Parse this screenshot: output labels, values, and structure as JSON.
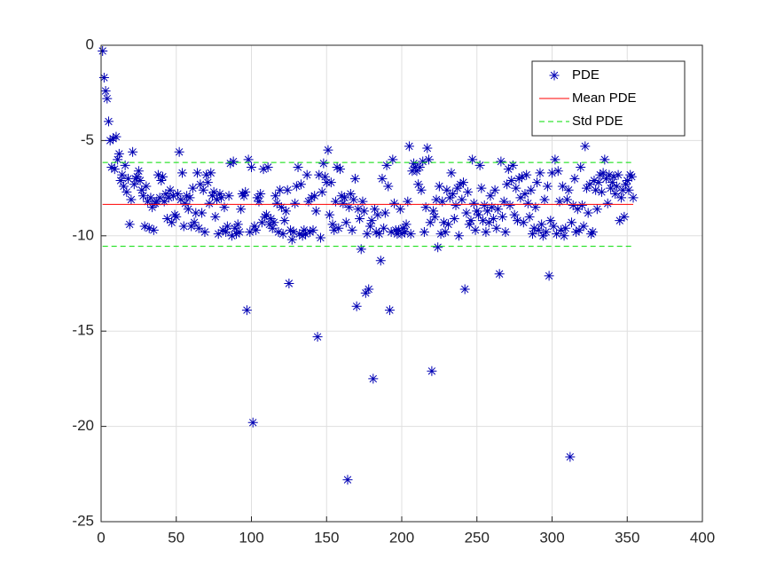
{
  "chart_data": {
    "type": "scatter",
    "x": [
      1,
      2,
      3,
      4,
      5,
      6,
      7,
      8,
      9,
      10,
      11,
      12,
      13,
      14,
      15,
      16,
      17,
      18,
      19,
      20,
      21,
      22,
      23,
      24,
      25,
      26,
      27,
      28,
      29,
      30,
      31,
      32,
      33,
      34,
      35,
      36,
      37,
      38,
      39,
      40,
      41,
      42,
      43,
      44,
      45,
      46,
      47,
      48,
      49,
      50,
      51,
      52,
      53,
      54,
      55,
      56,
      57,
      58,
      59,
      60,
      61,
      62,
      63,
      64,
      65,
      66,
      67,
      68,
      69,
      70,
      71,
      72,
      73,
      74,
      75,
      76,
      77,
      78,
      79,
      80,
      81,
      82,
      83,
      84,
      85,
      86,
      87,
      88,
      89,
      90,
      91,
      92,
      93,
      94,
      95,
      96,
      97,
      98,
      99,
      100,
      101,
      102,
      103,
      104,
      105,
      106,
      107,
      108,
      109,
      110,
      111,
      112,
      113,
      114,
      115,
      116,
      117,
      118,
      119,
      120,
      121,
      122,
      123,
      124,
      125,
      126,
      127,
      128,
      129,
      130,
      131,
      132,
      133,
      134,
      135,
      136,
      137,
      138,
      139,
      140,
      141,
      142,
      143,
      144,
      145,
      146,
      147,
      148,
      149,
      150,
      151,
      152,
      153,
      154,
      155,
      156,
      157,
      158,
      159,
      160,
      161,
      162,
      163,
      164,
      165,
      166,
      167,
      168,
      169,
      170,
      171,
      172,
      173,
      174,
      175,
      176,
      177,
      178,
      179,
      180,
      181,
      182,
      183,
      184,
      185,
      186,
      187,
      188,
      189,
      190,
      191,
      192,
      193,
      194,
      195,
      196,
      197,
      198,
      199,
      200,
      201,
      202,
      203,
      204,
      205,
      206,
      207,
      208,
      209,
      210,
      211,
      212,
      213,
      214,
      215,
      216,
      217,
      218,
      219,
      220,
      221,
      222,
      223,
      224,
      225,
      226,
      227,
      228,
      229,
      230,
      231,
      232,
      233,
      234,
      235,
      236,
      237,
      238,
      239,
      240,
      241,
      242,
      243,
      244,
      245,
      246,
      247,
      248,
      249,
      250,
      251,
      252,
      253,
      254,
      255,
      256,
      257,
      258,
      259,
      260,
      261,
      262,
      263,
      264,
      265,
      266,
      267,
      268,
      269,
      270,
      271,
      272,
      273,
      274,
      275,
      276,
      277,
      278,
      279,
      280,
      281,
      282,
      283,
      284,
      285,
      286,
      287,
      288,
      289,
      290,
      291,
      292,
      293,
      294,
      295,
      296,
      297,
      298,
      299,
      300,
      301,
      302,
      303,
      304,
      305,
      306,
      307,
      308,
      309,
      310,
      311,
      312,
      313,
      314,
      315,
      316,
      317,
      318,
      319,
      320,
      321,
      322,
      323,
      324,
      325,
      326,
      327,
      328,
      329,
      330,
      331,
      332,
      333,
      334,
      335,
      336,
      337,
      338,
      339,
      340,
      341,
      342,
      343,
      344,
      345,
      346,
      347,
      348,
      349,
      350,
      351,
      352,
      353,
      354
    ],
    "series": [
      {
        "name": "PDE",
        "color": "#0000b4",
        "marker": "*",
        "values": [
          -0.3,
          -1.7,
          -2.4,
          -2.8,
          -4.0,
          -5.0,
          -6.4,
          -4.9,
          -6.5,
          -4.8,
          -6.0,
          -5.7,
          -7.1,
          -6.8,
          -7.4,
          -6.3,
          -7.7,
          -7.0,
          -9.4,
          -8.1,
          -5.6,
          -7.3,
          -7.0,
          -6.9,
          -6.6,
          -7.1,
          -7.6,
          -7.9,
          -9.5,
          -7.4,
          -8.2,
          -9.6,
          -8.0,
          -8.5,
          -9.7,
          -8.3,
          -8.2,
          -6.8,
          -8.0,
          -7.1,
          -6.9,
          -8.2,
          -7.8,
          -9.1,
          -8.0,
          -7.6,
          -9.3,
          -7.9,
          -8.9,
          -9.0,
          -7.8,
          -5.6,
          -8.1,
          -6.7,
          -9.5,
          -8.3,
          -7.9,
          -8.6,
          -8.0,
          -9.5,
          -7.5,
          -9.3,
          -8.8,
          -6.7,
          -9.6,
          -7.3,
          -8.8,
          -7.6,
          -9.8,
          -6.8,
          -7.2,
          -8.3,
          -6.7,
          -7.9,
          -7.7,
          -9.0,
          -8.1,
          -9.9,
          -7.8,
          -8.0,
          -9.7,
          -8.5,
          -9.8,
          -9.5,
          -7.9,
          -6.2,
          -10.0,
          -6.1,
          -9.6,
          -9.9,
          -9.4,
          -9.8,
          -8.6,
          -7.8,
          -7.9,
          -7.7,
          -13.9,
          -6.0,
          -9.8,
          -6.4,
          -19.8,
          -9.5,
          -9.7,
          -8.0,
          -8.2,
          -7.8,
          -9.3,
          -6.5,
          -9.0,
          -8.9,
          -6.4,
          -9.4,
          -9.1,
          -9.6,
          -9.3,
          -7.9,
          -8.3,
          -9.8,
          -7.6,
          -8.5,
          -9.9,
          -9.2,
          -8.7,
          -7.6,
          -12.5,
          -9.7,
          -10.2,
          -9.8,
          -8.3,
          -7.4,
          -6.4,
          -9.9,
          -7.3,
          -10.0,
          -9.7,
          -9.9,
          -6.8,
          -8.2,
          -9.8,
          -8.0,
          -9.7,
          -7.9,
          -8.7,
          -15.3,
          -6.8,
          -10.1,
          -7.7,
          -6.2,
          -6.9,
          -7.2,
          -5.5,
          -8.9,
          -7.2,
          -9.4,
          -9.7,
          -8.2,
          -6.4,
          -9.6,
          -6.5,
          -7.9,
          -8.3,
          -8.0,
          -9.3,
          -22.8,
          -8.5,
          -7.8,
          -9.7,
          -8.1,
          -7.0,
          -13.7,
          -8.6,
          -9.1,
          -10.7,
          -8.2,
          -8.7,
          -13.0,
          -9.9,
          -12.8,
          -9.5,
          -9.2,
          -17.5,
          -8.6,
          -9.8,
          -8.9,
          -9.9,
          -11.3,
          -7.0,
          -9.6,
          -8.8,
          -6.3,
          -7.4,
          -13.9,
          -9.8,
          -6.0,
          -8.3,
          -9.7,
          -9.9,
          -9.7,
          -8.6,
          -9.9,
          -9.6,
          -9.8,
          -9.4,
          -8.2,
          -5.3,
          -9.9,
          -6.6,
          -6.2,
          -6.4,
          -6.6,
          -7.3,
          -6.4,
          -7.6,
          -6.1,
          -9.8,
          -8.5,
          -5.4,
          -6.0,
          -9.3,
          -17.1,
          -8.7,
          -9.0,
          -8.1,
          -10.6,
          -7.4,
          -9.9,
          -8.2,
          -9.3,
          -9.8,
          -7.6,
          -9.4,
          -8.0,
          -6.7,
          -7.8,
          -9.1,
          -8.4,
          -7.5,
          -10.0,
          -7.3,
          -8.1,
          -7.2,
          -12.8,
          -8.8,
          -7.7,
          -9.4,
          -9.2,
          -6.0,
          -8.3,
          -9.7,
          -8.7,
          -8.9,
          -6.3,
          -7.5,
          -9.2,
          -8.4,
          -9.8,
          -8.7,
          -9.3,
          -7.9,
          -8.5,
          -9.1,
          -7.6,
          -9.6,
          -8.6,
          -12.0,
          -6.1,
          -9.0,
          -8.2,
          -9.8,
          -7.3,
          -6.5,
          -8.4,
          -7.1,
          -6.3,
          -8.9,
          -7.5,
          -9.2,
          -7.0,
          -8.0,
          -6.9,
          -9.3,
          -7.8,
          -6.8,
          -8.3,
          -9.0,
          -7.6,
          -9.9,
          -9.6,
          -8.5,
          -7.2,
          -9.7,
          -6.7,
          -9.4,
          -10.0,
          -8.1,
          -9.8,
          -7.4,
          -12.1,
          -9.2,
          -6.7,
          -9.5,
          -6.0,
          -9.9,
          -6.6,
          -8.2,
          -9.7,
          -7.4,
          -10.0,
          -9.6,
          -8.1,
          -7.6,
          -21.6,
          -9.3,
          -8.4,
          -7.0,
          -9.8,
          -8.6,
          -9.7,
          -6.4,
          -8.4,
          -9.5,
          -5.3,
          -7.5,
          -8.8,
          -7.3,
          -9.9,
          -9.8,
          -7.1,
          -7.6,
          -8.6,
          -7.2,
          -6.8,
          -7.7,
          -6.7,
          -6.0,
          -7.0,
          -8.3,
          -6.8,
          -7.5,
          -7.2,
          -6.9,
          -7.8,
          -7.4,
          -6.8,
          -9.2,
          -8.0,
          -7.6,
          -9.0,
          -7.3,
          -7.1,
          -7.6,
          -6.8,
          -6.9,
          -8.0
        ]
      }
    ],
    "mean_line": {
      "name": "Mean PDE",
      "color": "#ff0000",
      "value": -8.35
    },
    "std_lines": {
      "name": "Std PDE",
      "color": "#00dd00",
      "values": [
        -6.15,
        -10.55
      ]
    },
    "xlim": [
      0,
      400
    ],
    "xticks": [
      0,
      50,
      100,
      150,
      200,
      250,
      300,
      350,
      400
    ],
    "ylim": [
      -25,
      0
    ],
    "yticks": [
      -25,
      -20,
      -15,
      -10,
      -5,
      0
    ],
    "grid": true,
    "legend": "northeast"
  }
}
